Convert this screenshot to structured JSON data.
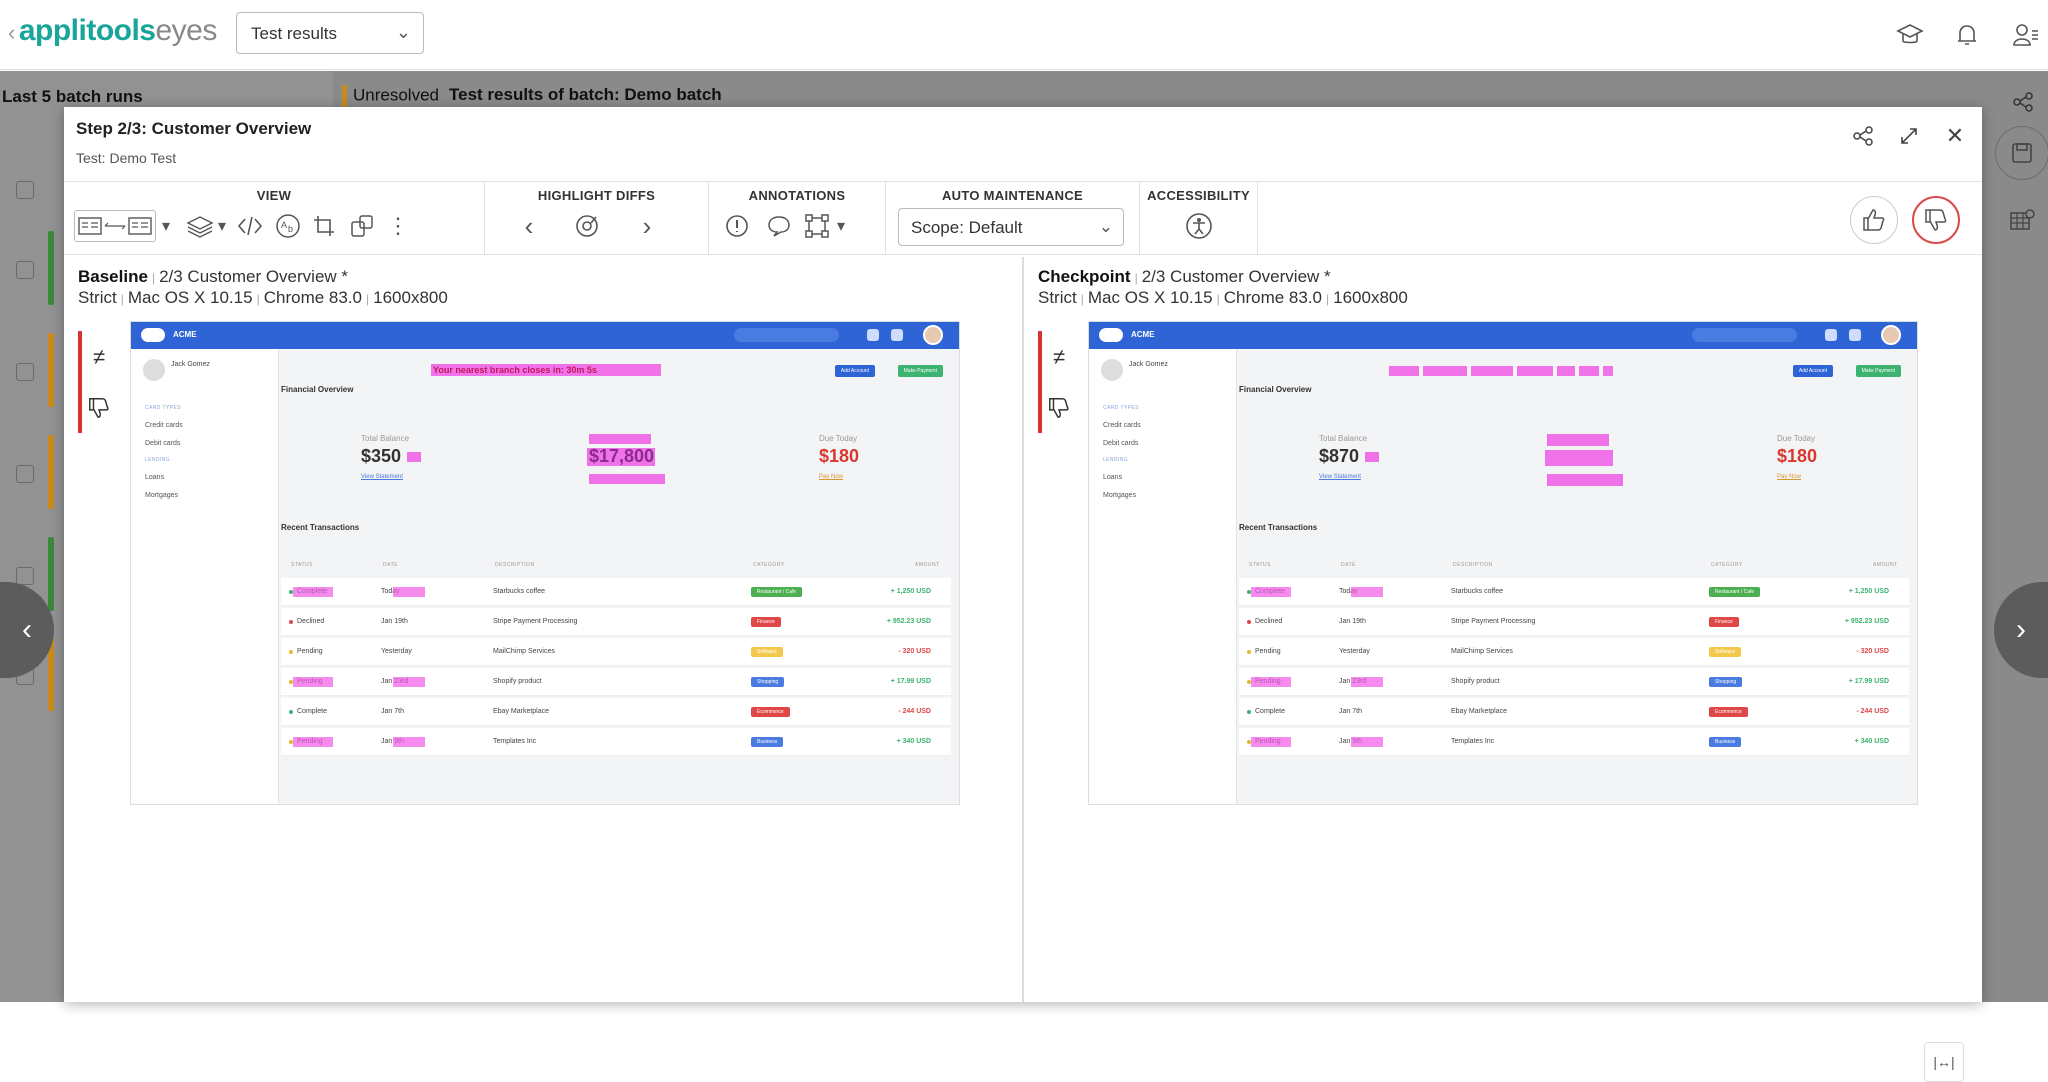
{
  "app": {
    "logo_primary": "applitools",
    "logo_secondary": "eyes",
    "view_select": "Test results"
  },
  "background": {
    "batch_runs_title": "Last 5 batch runs",
    "status": "Unresolved",
    "batch_title": "Test results of batch: Demo batch"
  },
  "modal": {
    "title": "Step 2/3: Customer Overview",
    "subtitle": "Test: Demo Test"
  },
  "toolbar": {
    "view_label": "VIEW",
    "highlight_label": "HIGHLIGHT DIFFS",
    "annotations_label": "ANNOTATIONS",
    "maintenance_label": "AUTO MAINTENANCE",
    "accessibility_label": "ACCESSIBILITY",
    "scope_value": "Scope: Default"
  },
  "baseline": {
    "label": "Baseline",
    "step": "2/3 Customer Overview *",
    "match": "Strict",
    "os": "Mac OS X 10.15",
    "browser": "Chrome 83.0",
    "size": "1600x800"
  },
  "checkpoint": {
    "label": "Checkpoint",
    "step": "2/3 Customer Overview *",
    "match": "Strict",
    "os": "Mac OS X 10.15",
    "browser": "Chrome 83.0",
    "size": "1600x800"
  },
  "acme": {
    "brand": "ACME",
    "user": "Jack Gomez",
    "card_types": "CARD TYPES",
    "credit": "Credit cards",
    "debit": "Debit cards",
    "lending": "LENDING",
    "loans": "Loans",
    "mortgages": "Mortgages",
    "financial_overview": "Financial Overview",
    "banner": "Your nearest branch closes in: 30m 5s",
    "add_account": "Add Account",
    "make_payment": "Make Payment",
    "total_balance_label": "Total Balance",
    "due_today_label": "Due Today",
    "view_statement": "View Statement",
    "pay_now": "Pay Now",
    "baseline_balance": "$350",
    "baseline_credit": "$17,800",
    "checkpoint_balance": "$870",
    "due_amount": "$180",
    "recent_transactions": "Recent Transactions",
    "columns": [
      "STATUS",
      "DATE",
      "DESCRIPTION",
      "CATEGORY",
      "AMOUNT"
    ],
    "rows": [
      {
        "status": "Complete",
        "date": "Today",
        "desc": "Starbucks coffee",
        "cat": "Restaurant / Cafe",
        "amount": "+ 1,250 USD",
        "dot": "#3cb371",
        "catcolor": "#4caf50",
        "amtcolor": "#3cb371"
      },
      {
        "status": "Declined",
        "date": "Jan 19th",
        "desc": "Stripe Payment Processing",
        "cat": "Finance",
        "amount": "+ 952.23 USD",
        "dot": "#e04848",
        "catcolor": "#e04848",
        "amtcolor": "#3cb371"
      },
      {
        "status": "Pending",
        "date": "Yesterday",
        "desc": "MailChimp Services",
        "cat": "Software",
        "amount": "- 320 USD",
        "dot": "#e8b62a",
        "catcolor": "#f2c94c",
        "amtcolor": "#e04848"
      },
      {
        "status": "Pending",
        "date": "Jan 23rd",
        "desc": "Shopify product",
        "cat": "Shopping",
        "amount": "+ 17.99 USD",
        "dot": "#e8b62a",
        "catcolor": "#4a7be0",
        "amtcolor": "#3cb371"
      },
      {
        "status": "Complete",
        "date": "Jan 7th",
        "desc": "Ebay Marketplace",
        "cat": "Ecommerce",
        "amount": "- 244 USD",
        "dot": "#3cb371",
        "catcolor": "#e04848",
        "amtcolor": "#e04848"
      },
      {
        "status": "Pending",
        "date": "Jan 9th",
        "desc": "Templates Inc",
        "cat": "Business",
        "amount": "+ 340 USD",
        "dot": "#e8b62a",
        "catcolor": "#4a7be0",
        "amtcolor": "#3cb371"
      }
    ]
  },
  "colors": {
    "accent": "#1aa59a",
    "diff_highlight": "#ef5ae6",
    "reject": "#e04848"
  }
}
